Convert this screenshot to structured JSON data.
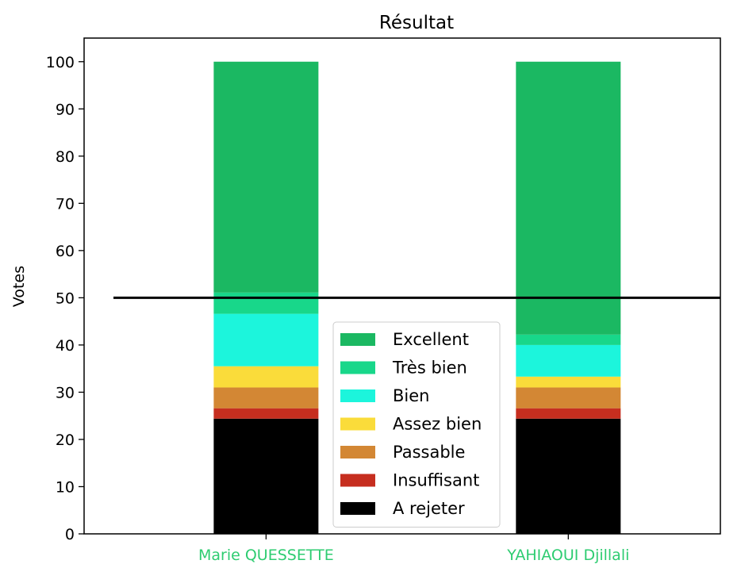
{
  "chart_data": {
    "type": "bar",
    "stacked": true,
    "title": "Résultat",
    "xlabel": "",
    "ylabel": "Votes",
    "ylim": [
      0,
      105
    ],
    "yticks": [
      0,
      10,
      20,
      30,
      40,
      50,
      60,
      70,
      80,
      90,
      100
    ],
    "categories": [
      "Marie QUESSETTE",
      "YAHIAOUI Djillali"
    ],
    "category_label_color": "#2ecc71",
    "median_line": 50,
    "median_line_color": "#000000",
    "series": [
      {
        "name": "A rejeter",
        "color": "#000000",
        "values": [
          24.4,
          24.4
        ]
      },
      {
        "name": "Insuffisant",
        "color": "#c62e1f",
        "values": [
          2.2,
          2.2
        ]
      },
      {
        "name": "Passable",
        "color": "#d38734",
        "values": [
          4.4,
          4.4
        ]
      },
      {
        "name": "Assez bien",
        "color": "#fadc3a",
        "values": [
          4.5,
          2.3
        ]
      },
      {
        "name": "Bien",
        "color": "#1cf5dc",
        "values": [
          11.1,
          6.7
        ]
      },
      {
        "name": "Très bien",
        "color": "#18d78a",
        "values": [
          4.5,
          2.2
        ]
      },
      {
        "name": "Excellent",
        "color": "#1bb862",
        "values": [
          48.9,
          57.8
        ]
      }
    ],
    "legend_order": [
      "Excellent",
      "Très bien",
      "Bien",
      "Assez bien",
      "Passable",
      "Insuffisant",
      "A rejeter"
    ],
    "legend_placement": "lower-center",
    "grid": false
  }
}
